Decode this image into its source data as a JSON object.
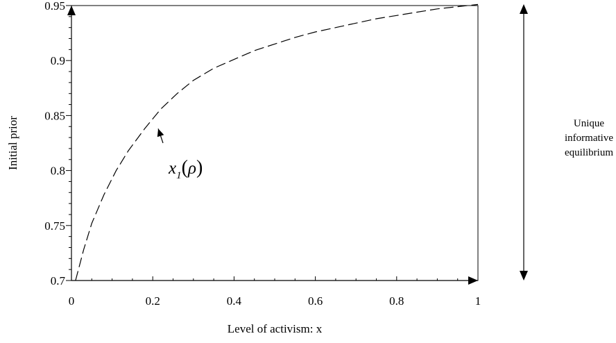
{
  "chart_data": {
    "type": "line",
    "title": "",
    "xlabel": "Level of activism: x",
    "ylabel": "Initial prior",
    "xlim": [
      0,
      1
    ],
    "ylim": [
      0.7,
      0.95
    ],
    "x_ticks": [
      {
        "value": 0,
        "label": "0"
      },
      {
        "value": 0.2,
        "label": "0.2"
      },
      {
        "value": 0.4,
        "label": "0.4"
      },
      {
        "value": 0.6,
        "label": "0.6"
      },
      {
        "value": 0.8,
        "label": "0.8"
      },
      {
        "value": 1,
        "label": "1"
      }
    ],
    "y_ticks": [
      {
        "value": 0.7,
        "label": "0.7"
      },
      {
        "value": 0.75,
        "label": "0.75"
      },
      {
        "value": 0.8,
        "label": "0.8"
      },
      {
        "value": 0.85,
        "label": "0.85"
      },
      {
        "value": 0.9,
        "label": "0.9"
      },
      {
        "value": 0.95,
        "label": "0.95"
      }
    ],
    "grid": false,
    "series": [
      {
        "line_style": "dashed",
        "x": [
          0.01,
          0.03,
          0.05,
          0.08,
          0.11,
          0.14,
          0.18,
          0.22,
          0.26,
          0.3,
          0.35,
          0.4,
          0.45,
          0.5,
          0.55,
          0.6,
          0.65,
          0.7,
          0.75,
          0.8,
          0.85,
          0.9,
          0.95,
          1.0
        ],
        "y": [
          0.7,
          0.728,
          0.752,
          0.778,
          0.8,
          0.818,
          0.838,
          0.856,
          0.87,
          0.882,
          0.893,
          0.901,
          0.909,
          0.915,
          0.921,
          0.926,
          0.93,
          0.934,
          0.938,
          0.941,
          0.944,
          0.947,
          0.949,
          0.951
        ]
      }
    ],
    "annotations": [
      {
        "label_main": "x",
        "label_sub": "1",
        "label_paren_open": "(",
        "label_arg": "ρ",
        "label_paren_close": ")",
        "points_to": {
          "x": 0.21,
          "y": 0.845
        }
      }
    ],
    "side_annotation": {
      "lines": [
        "Unique",
        "informative",
        "equilibrium"
      ],
      "range": [
        0.7,
        0.95
      ]
    }
  }
}
